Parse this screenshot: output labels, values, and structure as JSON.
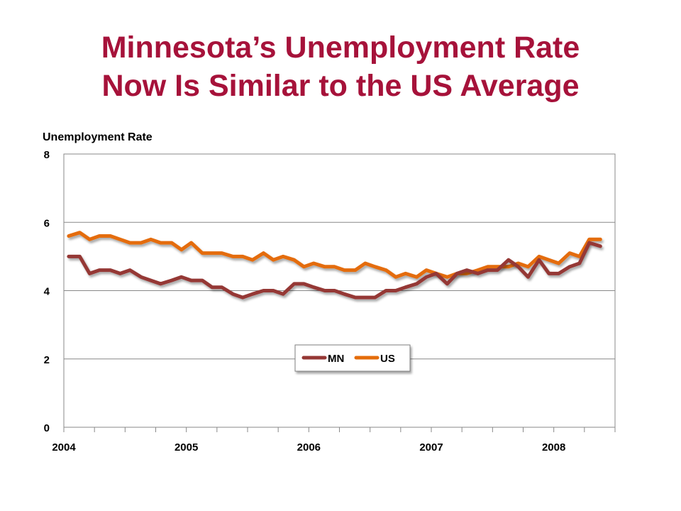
{
  "title_line1": "Minnesota’s Unemployment Rate",
  "title_line2": "Now Is Similar to the US Average",
  "chart_data": {
    "type": "line",
    "ylabel": "Unemployment Rate",
    "ylim": [
      0,
      8
    ],
    "yticks": [
      "0",
      "2",
      "4",
      "6",
      "8"
    ],
    "xlim": [
      2004.0,
      2008.5
    ],
    "xticks": [
      "2004",
      "2005",
      "2006",
      "2007",
      "2008"
    ],
    "grid": true,
    "legend_position": "center-bottom",
    "colors": {
      "MN": "#953734",
      "US": "#e46c0a"
    },
    "x": [
      2004.04,
      2004.13,
      2004.21,
      2004.29,
      2004.38,
      2004.46,
      2004.54,
      2004.63,
      2004.71,
      2004.79,
      2004.88,
      2004.96,
      2005.04,
      2005.13,
      2005.21,
      2005.29,
      2005.38,
      2005.46,
      2005.54,
      2005.63,
      2005.71,
      2005.79,
      2005.88,
      2005.96,
      2006.04,
      2006.13,
      2006.21,
      2006.29,
      2006.38,
      2006.46,
      2006.54,
      2006.63,
      2006.71,
      2006.79,
      2006.88,
      2006.96,
      2007.04,
      2007.13,
      2007.21,
      2007.29,
      2007.38,
      2007.46,
      2007.54,
      2007.63,
      2007.71,
      2007.79,
      2007.88,
      2007.96,
      2008.04,
      2008.13,
      2008.21,
      2008.29,
      2008.38
    ],
    "series": [
      {
        "name": "MN",
        "values": [
          5.0,
          5.0,
          4.5,
          4.6,
          4.6,
          4.5,
          4.6,
          4.4,
          4.3,
          4.2,
          4.3,
          4.4,
          4.3,
          4.3,
          4.1,
          4.1,
          3.9,
          3.8,
          3.9,
          4.0,
          4.0,
          3.9,
          4.2,
          4.2,
          4.1,
          4.0,
          4.0,
          3.9,
          3.8,
          3.8,
          3.8,
          4.0,
          4.0,
          4.1,
          4.2,
          4.4,
          4.5,
          4.2,
          4.5,
          4.6,
          4.5,
          4.6,
          4.6,
          4.9,
          4.7,
          4.4,
          4.9,
          4.5,
          4.5,
          4.7,
          4.8,
          5.4,
          5.3
        ]
      },
      {
        "name": "US",
        "values": [
          5.6,
          5.7,
          5.5,
          5.6,
          5.6,
          5.5,
          5.4,
          5.4,
          5.5,
          5.4,
          5.4,
          5.2,
          5.4,
          5.1,
          5.1,
          5.1,
          5.0,
          5.0,
          4.9,
          5.1,
          4.9,
          5.0,
          4.9,
          4.7,
          4.8,
          4.7,
          4.7,
          4.6,
          4.6,
          4.8,
          4.7,
          4.6,
          4.4,
          4.5,
          4.4,
          4.6,
          4.5,
          4.4,
          4.5,
          4.5,
          4.6,
          4.7,
          4.7,
          4.7,
          4.8,
          4.7,
          5.0,
          4.9,
          4.8,
          5.1,
          5.0,
          5.5,
          5.5
        ]
      }
    ]
  }
}
